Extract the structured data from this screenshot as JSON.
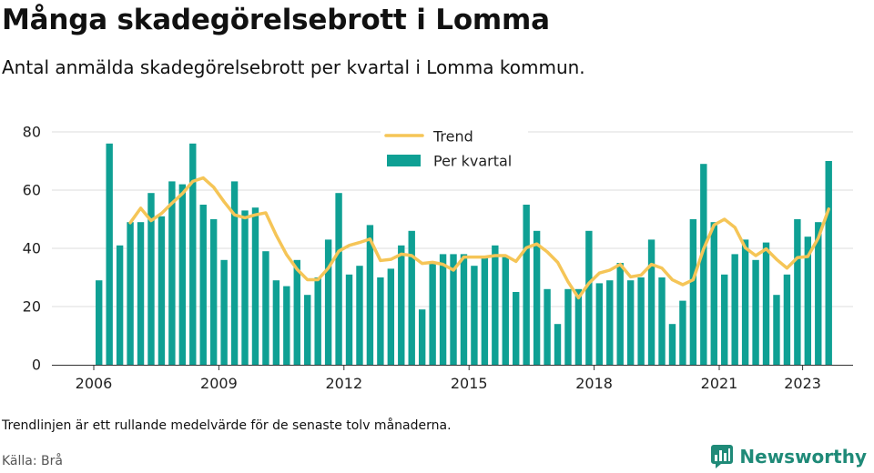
{
  "header": {
    "title": "Många skadegörelsebrott i Lomma",
    "subtitle": "Antal anmälda skadegörelsebrott per kvartal i Lomma kommun."
  },
  "footer": {
    "note": "Trendlinjen är ett rullande medelvärde för de senaste tolv månaderna.",
    "source": "Källa: Brå",
    "brand": "Newsworthy"
  },
  "colors": {
    "bars": "#0fa094",
    "trend": "#f5c557",
    "brand": "#1f8a78"
  },
  "icons": {
    "brand_logo": "newsworthy-logo-icon"
  },
  "chart_data": {
    "type": "bar",
    "title": "Många skadegörelsebrott i Lomma",
    "subtitle": "Antal anmälda skadegörelsebrott per kvartal i Lomma kommun.",
    "xlabel": "",
    "ylabel": "",
    "ylim": [
      0,
      80
    ],
    "yticks": [
      0,
      20,
      40,
      60,
      80
    ],
    "xticks": [
      {
        "label": "2006",
        "year": 2006
      },
      {
        "label": "2009",
        "year": 2009
      },
      {
        "label": "2012",
        "year": 2012
      },
      {
        "label": "2015",
        "year": 2015
      },
      {
        "label": "2018",
        "year": 2018
      },
      {
        "label": "2021",
        "year": 2021
      },
      {
        "label": "2023",
        "year": 2023
      }
    ],
    "grid": true,
    "legend_position": "top-center",
    "first_quarter": "2006 Q1",
    "quarters": [
      "2006 Q1",
      "2006 Q2",
      "2006 Q3",
      "2006 Q4",
      "2007 Q1",
      "2007 Q2",
      "2007 Q3",
      "2007 Q4",
      "2008 Q1",
      "2008 Q2",
      "2008 Q3",
      "2008 Q4",
      "2009 Q1",
      "2009 Q2",
      "2009 Q3",
      "2009 Q4",
      "2010 Q1",
      "2010 Q2",
      "2010 Q3",
      "2010 Q4",
      "2011 Q1",
      "2011 Q2",
      "2011 Q3",
      "2011 Q4",
      "2012 Q1",
      "2012 Q2",
      "2012 Q3",
      "2012 Q4",
      "2013 Q1",
      "2013 Q2",
      "2013 Q3",
      "2013 Q4",
      "2014 Q1",
      "2014 Q2",
      "2014 Q3",
      "2014 Q4",
      "2015 Q1",
      "2015 Q2",
      "2015 Q3",
      "2015 Q4",
      "2016 Q1",
      "2016 Q2",
      "2016 Q3",
      "2016 Q4",
      "2017 Q1",
      "2017 Q2",
      "2017 Q3",
      "2017 Q4",
      "2018 Q1",
      "2018 Q2",
      "2018 Q3",
      "2018 Q4",
      "2019 Q1",
      "2019 Q2",
      "2019 Q3",
      "2019 Q4",
      "2020 Q1",
      "2020 Q2",
      "2020 Q3",
      "2020 Q4",
      "2021 Q1",
      "2021 Q2",
      "2021 Q3",
      "2021 Q4",
      "2022 Q1",
      "2022 Q2",
      "2022 Q3",
      "2022 Q4",
      "2023 Q1",
      "2023 Q2",
      "2023 Q3",
      "2023 Q4"
    ],
    "series": [
      {
        "name": "Per kvartal",
        "type": "bar",
        "values": [
          29,
          76,
          41,
          49,
          49,
          59,
          51,
          63,
          62,
          76,
          55,
          50,
          36,
          63,
          53,
          54,
          39,
          29,
          27,
          36,
          24,
          30,
          43,
          59,
          31,
          34,
          48,
          30,
          33,
          41,
          46,
          19,
          35,
          38,
          38,
          38,
          34,
          37,
          41,
          37,
          25,
          55,
          46,
          26,
          14,
          26,
          26,
          46,
          28,
          29,
          35,
          29,
          30,
          43,
          30,
          14,
          22,
          50,
          69,
          49,
          31,
          38,
          43,
          36,
          42,
          24,
          31,
          50,
          44,
          49,
          70,
          null
        ]
      },
      {
        "name": "Trend",
        "type": "line",
        "values": [
          null,
          null,
          null,
          48.8,
          53.8,
          49.5,
          52,
          55.5,
          58.8,
          63,
          64.2,
          61,
          56,
          51.5,
          50.5,
          51.5,
          52.2,
          44.5,
          37.8,
          32.8,
          29.2,
          29.2,
          33.2,
          39.0,
          41.0,
          42.0,
          43.2,
          35.8,
          36.2,
          38.0,
          37.5,
          34.8,
          35.2,
          34.5,
          32.5,
          37.0,
          37.0,
          37.0,
          37.5,
          37.5,
          35.5,
          40.2,
          41.5,
          38.8,
          35.2,
          28.5,
          23.0,
          28.0,
          31.5,
          32.5,
          34.5,
          30.2,
          30.8,
          34.5,
          33.2,
          29.2,
          27.5,
          29.2,
          39.8,
          48.0,
          50.0,
          47.2,
          40.2,
          37.5,
          39.8,
          36.2,
          33.2,
          36.8,
          37.2,
          43.5,
          53.5,
          null
        ]
      }
    ]
  }
}
